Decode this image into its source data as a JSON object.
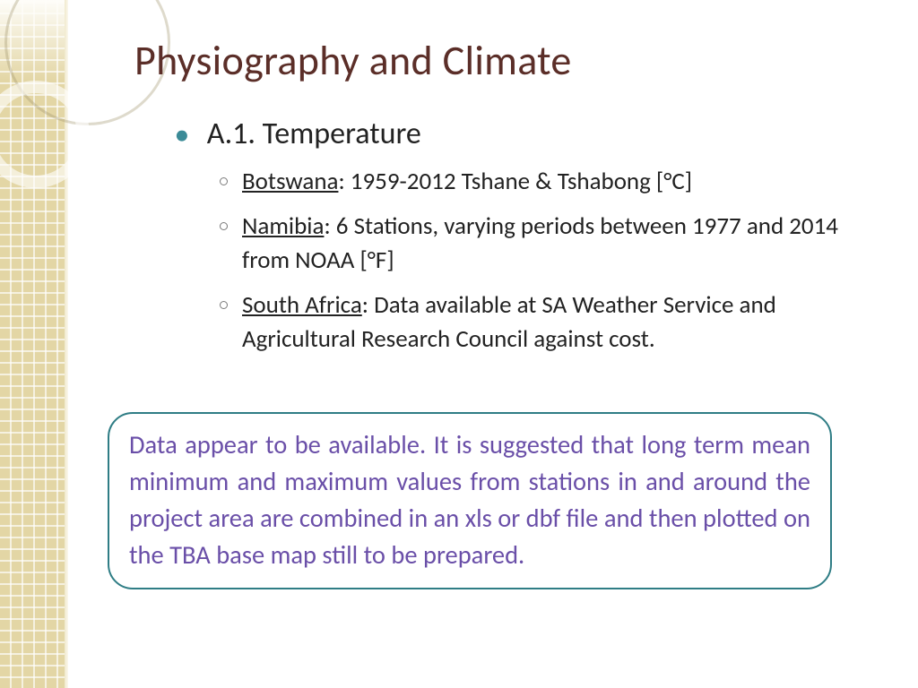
{
  "slide": {
    "title": "Physiography and Climate",
    "bullet1": "A.1. Temperature",
    "sub1_label": "Botswana",
    "sub1_rest": ":  1959-2012 Tshane & Tshabong [°C]",
    "sub2_label": "Namibia",
    "sub2_rest": ": 6 Stations, varying periods between 1977 and 2014 from NOAA [°F]",
    "sub3_label": "South Africa",
    "sub3_rest": ":  Data available at SA Weather Service and Agricultural Research Council against cost.",
    "callout": "Data appear to be available. It is suggested that long term mean minimum and maximum values from stations in and around the project area are combined in an xls or dbf file and then plotted on the TBA base map still to be prepared."
  },
  "theme": {
    "title_color": "#5b2e28",
    "bullet_accent": "#3b8b97",
    "callout_border": "#2f7d85",
    "callout_text": "#6a4fa8",
    "sidebar_fill": "#e3d6a5"
  }
}
